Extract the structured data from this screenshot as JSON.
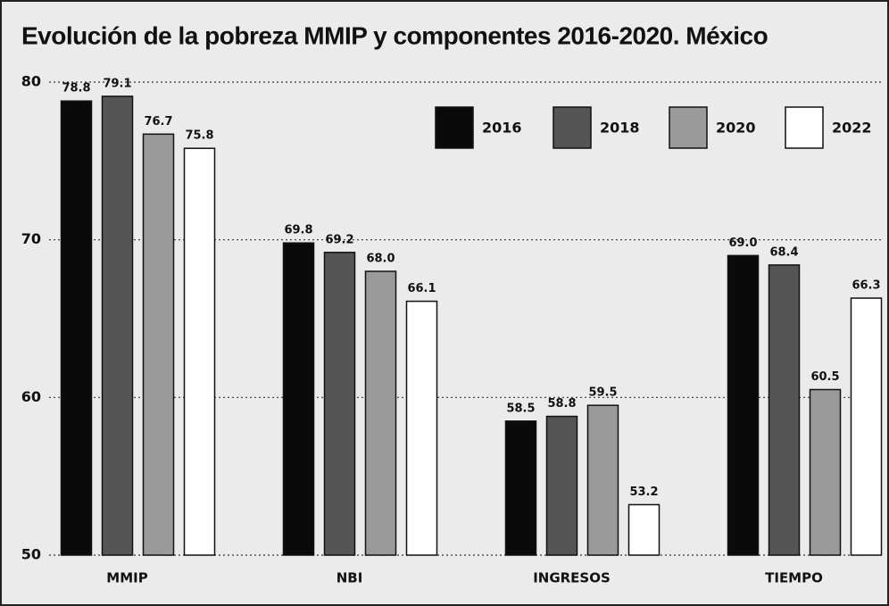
{
  "chart_data": {
    "type": "bar",
    "title": "Evolución de la pobreza MMIP y componentes 2016-2020. México",
    "categories": [
      "MMIP",
      "NBI",
      "INGRESOS",
      "TIEMPO"
    ],
    "series": [
      {
        "name": "2016",
        "color": "#0a0a0a",
        "values": [
          78.8,
          69.8,
          58.5,
          69.0
        ],
        "value_labels": [
          "78.8",
          "69.8",
          "58.5",
          "69.0"
        ]
      },
      {
        "name": "2018",
        "color": "#555555",
        "values": [
          79.1,
          69.2,
          58.8,
          68.4
        ],
        "value_labels": [
          "79.1",
          "69.2",
          "58.8",
          "68.4"
        ]
      },
      {
        "name": "2020",
        "color": "#9a9a9a",
        "values": [
          76.7,
          68.0,
          59.5,
          60.5
        ],
        "value_labels": [
          "76.7",
          "68.0",
          "59.5",
          "60.5"
        ]
      },
      {
        "name": "2022",
        "color": "#ffffff",
        "values": [
          75.8,
          66.1,
          53.2,
          66.3
        ],
        "value_labels": [
          "75.8",
          "66.1",
          "53.2",
          "66.3"
        ]
      }
    ],
    "ylim": [
      50,
      80
    ],
    "yticks": [
      50,
      60,
      70,
      80
    ],
    "grid": true,
    "legend": "upper right"
  }
}
